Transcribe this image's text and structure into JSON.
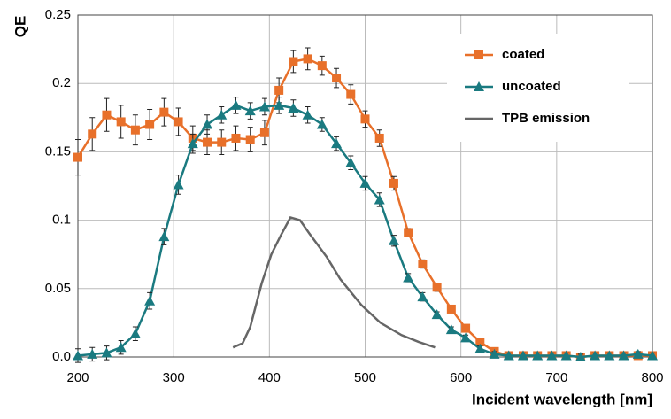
{
  "chart_data": {
    "type": "line",
    "x_label": "Incident wavelength [nm]",
    "y_label": "QE",
    "xlim": [
      200,
      800
    ],
    "xticks": [
      200,
      300,
      400,
      500,
      600,
      700,
      800
    ],
    "ylim": [
      0,
      0.25
    ],
    "yticks": [
      {
        "value": 0,
        "label": "0.0"
      },
      0.05,
      0.1,
      0.15,
      0.2,
      0.25
    ],
    "grid": true,
    "legend": "upper right",
    "series": [
      {
        "name": "coated",
        "color": "#e8702a",
        "marker": "square",
        "x": [
          200,
          215,
          230,
          245,
          260,
          275,
          290,
          305,
          320,
          335,
          350,
          365,
          380,
          395,
          410,
          425,
          440,
          455,
          470,
          485,
          500,
          515,
          530,
          545,
          560,
          575,
          590,
          605,
          620,
          635,
          650,
          665,
          680,
          695,
          710,
          725,
          740,
          755,
          770,
          785,
          800
        ],
        "values": [
          0.146,
          0.163,
          0.177,
          0.172,
          0.166,
          0.17,
          0.179,
          0.172,
          0.16,
          0.157,
          0.157,
          0.16,
          0.159,
          0.164,
          0.195,
          0.216,
          0.218,
          0.213,
          0.204,
          0.192,
          0.174,
          0.16,
          0.127,
          0.091,
          0.068,
          0.051,
          0.035,
          0.021,
          0.011,
          0.004,
          0.001,
          0.001,
          0.001,
          0.001,
          0.001,
          0.0,
          0.001,
          0.001,
          0.001,
          0.001,
          0.001
        ],
        "errors": [
          0.013,
          0.012,
          0.012,
          0.012,
          0.011,
          0.011,
          0.01,
          0.01,
          0.009,
          0.009,
          0.009,
          0.009,
          0.009,
          0.009,
          0.009,
          0.008,
          0.008,
          0.007,
          0.007,
          0.007,
          0.006,
          0.006,
          0.005,
          0.003,
          0.003,
          0.003,
          0.002,
          0.002,
          0.002,
          0.002,
          0.002,
          0.002,
          0.002,
          0.002,
          0.002,
          0.002,
          0.002,
          0.002,
          0.002,
          0.002,
          0.002
        ]
      },
      {
        "name": "uncoated",
        "color": "#1a7a80",
        "marker": "triangle",
        "x": [
          200,
          215,
          230,
          245,
          260,
          275,
          290,
          305,
          320,
          335,
          350,
          365,
          380,
          395,
          410,
          425,
          440,
          455,
          470,
          485,
          500,
          515,
          530,
          545,
          560,
          575,
          590,
          605,
          620,
          635,
          650,
          665,
          680,
          695,
          710,
          725,
          740,
          755,
          770,
          785,
          800
        ],
        "values": [
          0.001,
          0.002,
          0.003,
          0.007,
          0.017,
          0.041,
          0.088,
          0.126,
          0.156,
          0.17,
          0.177,
          0.184,
          0.18,
          0.183,
          0.184,
          0.182,
          0.177,
          0.17,
          0.156,
          0.142,
          0.127,
          0.115,
          0.085,
          0.058,
          0.044,
          0.031,
          0.02,
          0.014,
          0.006,
          0.002,
          0.001,
          0.001,
          0.001,
          0.001,
          0.001,
          0.0,
          0.001,
          0.001,
          0.001,
          0.002,
          0.001
        ],
        "errors": [
          0.005,
          0.005,
          0.005,
          0.005,
          0.005,
          0.006,
          0.006,
          0.007,
          0.007,
          0.007,
          0.006,
          0.006,
          0.006,
          0.006,
          0.006,
          0.006,
          0.006,
          0.005,
          0.005,
          0.005,
          0.005,
          0.005,
          0.004,
          0.003,
          0.003,
          0.002,
          0.002,
          0.002,
          0.002,
          0.002,
          0.002,
          0.002,
          0.002,
          0.002,
          0.002,
          0.002,
          0.002,
          0.002,
          0.002,
          0.002,
          0.002
        ]
      },
      {
        "name": "TPB emission",
        "color": "#666666",
        "marker": "none",
        "x": [
          362,
          372,
          380,
          392,
          402,
          412,
          422,
          432,
          442,
          460,
          474,
          496,
          516,
          538,
          556,
          573
        ],
        "values": [
          0.007,
          0.01,
          0.022,
          0.054,
          0.075,
          0.089,
          0.102,
          0.1,
          0.09,
          0.073,
          0.057,
          0.038,
          0.025,
          0.016,
          0.011,
          0.007
        ]
      }
    ]
  }
}
